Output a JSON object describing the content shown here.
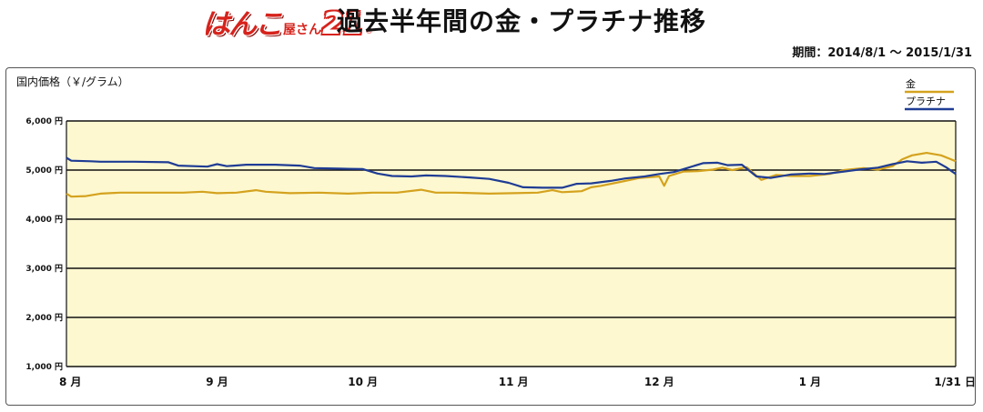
{
  "header": {
    "logo": {
      "text": "はんこ",
      "sub": "屋さん",
      "number": "21",
      "mark": "®"
    },
    "title": "過去半年間の金・プラチナ推移",
    "period": "期間：2014/8/1 〜 2015/1/31"
  },
  "colors": {
    "gold": "#d4a21e",
    "platinum": "#1f3c94",
    "plot_bg": "#fdf8d0",
    "grid": "#111111"
  },
  "chart_data": {
    "type": "line",
    "title": "過去半年間の金・プラチナ推移",
    "ylabel": "国内価格（￥/グラム）",
    "xlabel": "",
    "ylim": [
      1000,
      6000
    ],
    "grid": true,
    "legend_position": "top-right",
    "y_ticks": [
      {
        "value": 6000,
        "label": "6,000 円"
      },
      {
        "value": 5000,
        "label": "5,000 円"
      },
      {
        "value": 4000,
        "label": "4,000 円"
      },
      {
        "value": 3000,
        "label": "3,000 円"
      },
      {
        "value": 2000,
        "label": "2,000 円"
      },
      {
        "value": 1000,
        "label": "1,000 円"
      }
    ],
    "x_ticks": [
      {
        "date": "2014-08-01",
        "label": "8 月"
      },
      {
        "date": "2014-09-01",
        "label": "9 月"
      },
      {
        "date": "2014-10-01",
        "label": "10 月"
      },
      {
        "date": "2014-11-01",
        "label": "11 月"
      },
      {
        "date": "2014-12-01",
        "label": "12 月"
      },
      {
        "date": "2015-01-01",
        "label": "1 月"
      },
      {
        "date": "2015-01-31",
        "label": "1/31 日"
      }
    ],
    "series": [
      {
        "name": "金",
        "color": "#d4a21e",
        "points": [
          [
            "2014-08-01",
            4520
          ],
          [
            "2014-08-02",
            4460
          ],
          [
            "2014-08-05",
            4470
          ],
          [
            "2014-08-08",
            4520
          ],
          [
            "2014-08-12",
            4540
          ],
          [
            "2014-08-18",
            4540
          ],
          [
            "2014-08-25",
            4540
          ],
          [
            "2014-08-29",
            4560
          ],
          [
            "2014-09-01",
            4530
          ],
          [
            "2014-09-05",
            4540
          ],
          [
            "2014-09-09",
            4590
          ],
          [
            "2014-09-11",
            4560
          ],
          [
            "2014-09-16",
            4530
          ],
          [
            "2014-09-22",
            4540
          ],
          [
            "2014-09-28",
            4520
          ],
          [
            "2014-10-03",
            4540
          ],
          [
            "2014-10-08",
            4540
          ],
          [
            "2014-10-13",
            4600
          ],
          [
            "2014-10-16",
            4540
          ],
          [
            "2014-10-20",
            4540
          ],
          [
            "2014-10-27",
            4520
          ],
          [
            "2014-11-01",
            4530
          ],
          [
            "2014-11-06",
            4540
          ],
          [
            "2014-11-09",
            4590
          ],
          [
            "2014-11-11",
            4550
          ],
          [
            "2014-11-15",
            4570
          ],
          [
            "2014-11-17",
            4650
          ],
          [
            "2014-11-19",
            4680
          ],
          [
            "2014-11-23",
            4760
          ],
          [
            "2014-11-27",
            4840
          ],
          [
            "2014-12-01",
            4870
          ],
          [
            "2014-12-02",
            4680
          ],
          [
            "2014-12-03",
            4880
          ],
          [
            "2014-12-06",
            4970
          ],
          [
            "2014-12-09",
            4980
          ],
          [
            "2014-12-12",
            5010
          ],
          [
            "2014-12-14",
            5050
          ],
          [
            "2014-12-16",
            5000
          ],
          [
            "2014-12-19",
            5060
          ],
          [
            "2014-12-22",
            4800
          ],
          [
            "2014-12-25",
            4900
          ],
          [
            "2014-12-28",
            4880
          ],
          [
            "2015-01-01",
            4880
          ],
          [
            "2015-01-05",
            4920
          ],
          [
            "2015-01-08",
            5000
          ],
          [
            "2015-01-12",
            5040
          ],
          [
            "2015-01-15",
            5010
          ],
          [
            "2015-01-18",
            5080
          ],
          [
            "2015-01-20",
            5220
          ],
          [
            "2015-01-22",
            5300
          ],
          [
            "2015-01-25",
            5350
          ],
          [
            "2015-01-28",
            5300
          ],
          [
            "2015-01-30",
            5220
          ],
          [
            "2015-01-31",
            5180
          ]
        ]
      },
      {
        "name": "プラチナ",
        "color": "#1f3c94",
        "points": [
          [
            "2014-08-01",
            5250
          ],
          [
            "2014-08-02",
            5190
          ],
          [
            "2014-08-06",
            5180
          ],
          [
            "2014-08-08",
            5170
          ],
          [
            "2014-08-15",
            5170
          ],
          [
            "2014-08-22",
            5160
          ],
          [
            "2014-08-24",
            5090
          ],
          [
            "2014-08-30",
            5070
          ],
          [
            "2014-09-01",
            5120
          ],
          [
            "2014-09-03",
            5080
          ],
          [
            "2014-09-07",
            5110
          ],
          [
            "2014-09-13",
            5110
          ],
          [
            "2014-09-18",
            5090
          ],
          [
            "2014-09-21",
            5040
          ],
          [
            "2014-09-26",
            5030
          ],
          [
            "2014-10-01",
            5020
          ],
          [
            "2014-10-04",
            4930
          ],
          [
            "2014-10-07",
            4880
          ],
          [
            "2014-10-11",
            4870
          ],
          [
            "2014-10-14",
            4890
          ],
          [
            "2014-10-18",
            4880
          ],
          [
            "2014-10-23",
            4850
          ],
          [
            "2014-10-27",
            4820
          ],
          [
            "2014-10-31",
            4740
          ],
          [
            "2014-11-03",
            4650
          ],
          [
            "2014-11-07",
            4640
          ],
          [
            "2014-11-11",
            4640
          ],
          [
            "2014-11-14",
            4720
          ],
          [
            "2014-11-17",
            4730
          ],
          [
            "2014-11-21",
            4780
          ],
          [
            "2014-11-24",
            4830
          ],
          [
            "2014-11-28",
            4870
          ],
          [
            "2014-12-01",
            4920
          ],
          [
            "2014-12-04",
            4960
          ],
          [
            "2014-12-07",
            5050
          ],
          [
            "2014-12-10",
            5140
          ],
          [
            "2014-12-13",
            5150
          ],
          [
            "2014-12-15",
            5100
          ],
          [
            "2014-12-18",
            5110
          ],
          [
            "2014-12-21",
            4870
          ],
          [
            "2014-12-24",
            4840
          ],
          [
            "2014-12-28",
            4910
          ],
          [
            "2015-01-01",
            4930
          ],
          [
            "2015-01-04",
            4920
          ],
          [
            "2015-01-08",
            4970
          ],
          [
            "2015-01-11",
            5010
          ],
          [
            "2015-01-15",
            5050
          ],
          [
            "2015-01-18",
            5120
          ],
          [
            "2015-01-21",
            5180
          ],
          [
            "2015-01-24",
            5150
          ],
          [
            "2015-01-27",
            5170
          ],
          [
            "2015-01-29",
            5060
          ],
          [
            "2015-01-31",
            4920
          ]
        ]
      }
    ]
  }
}
